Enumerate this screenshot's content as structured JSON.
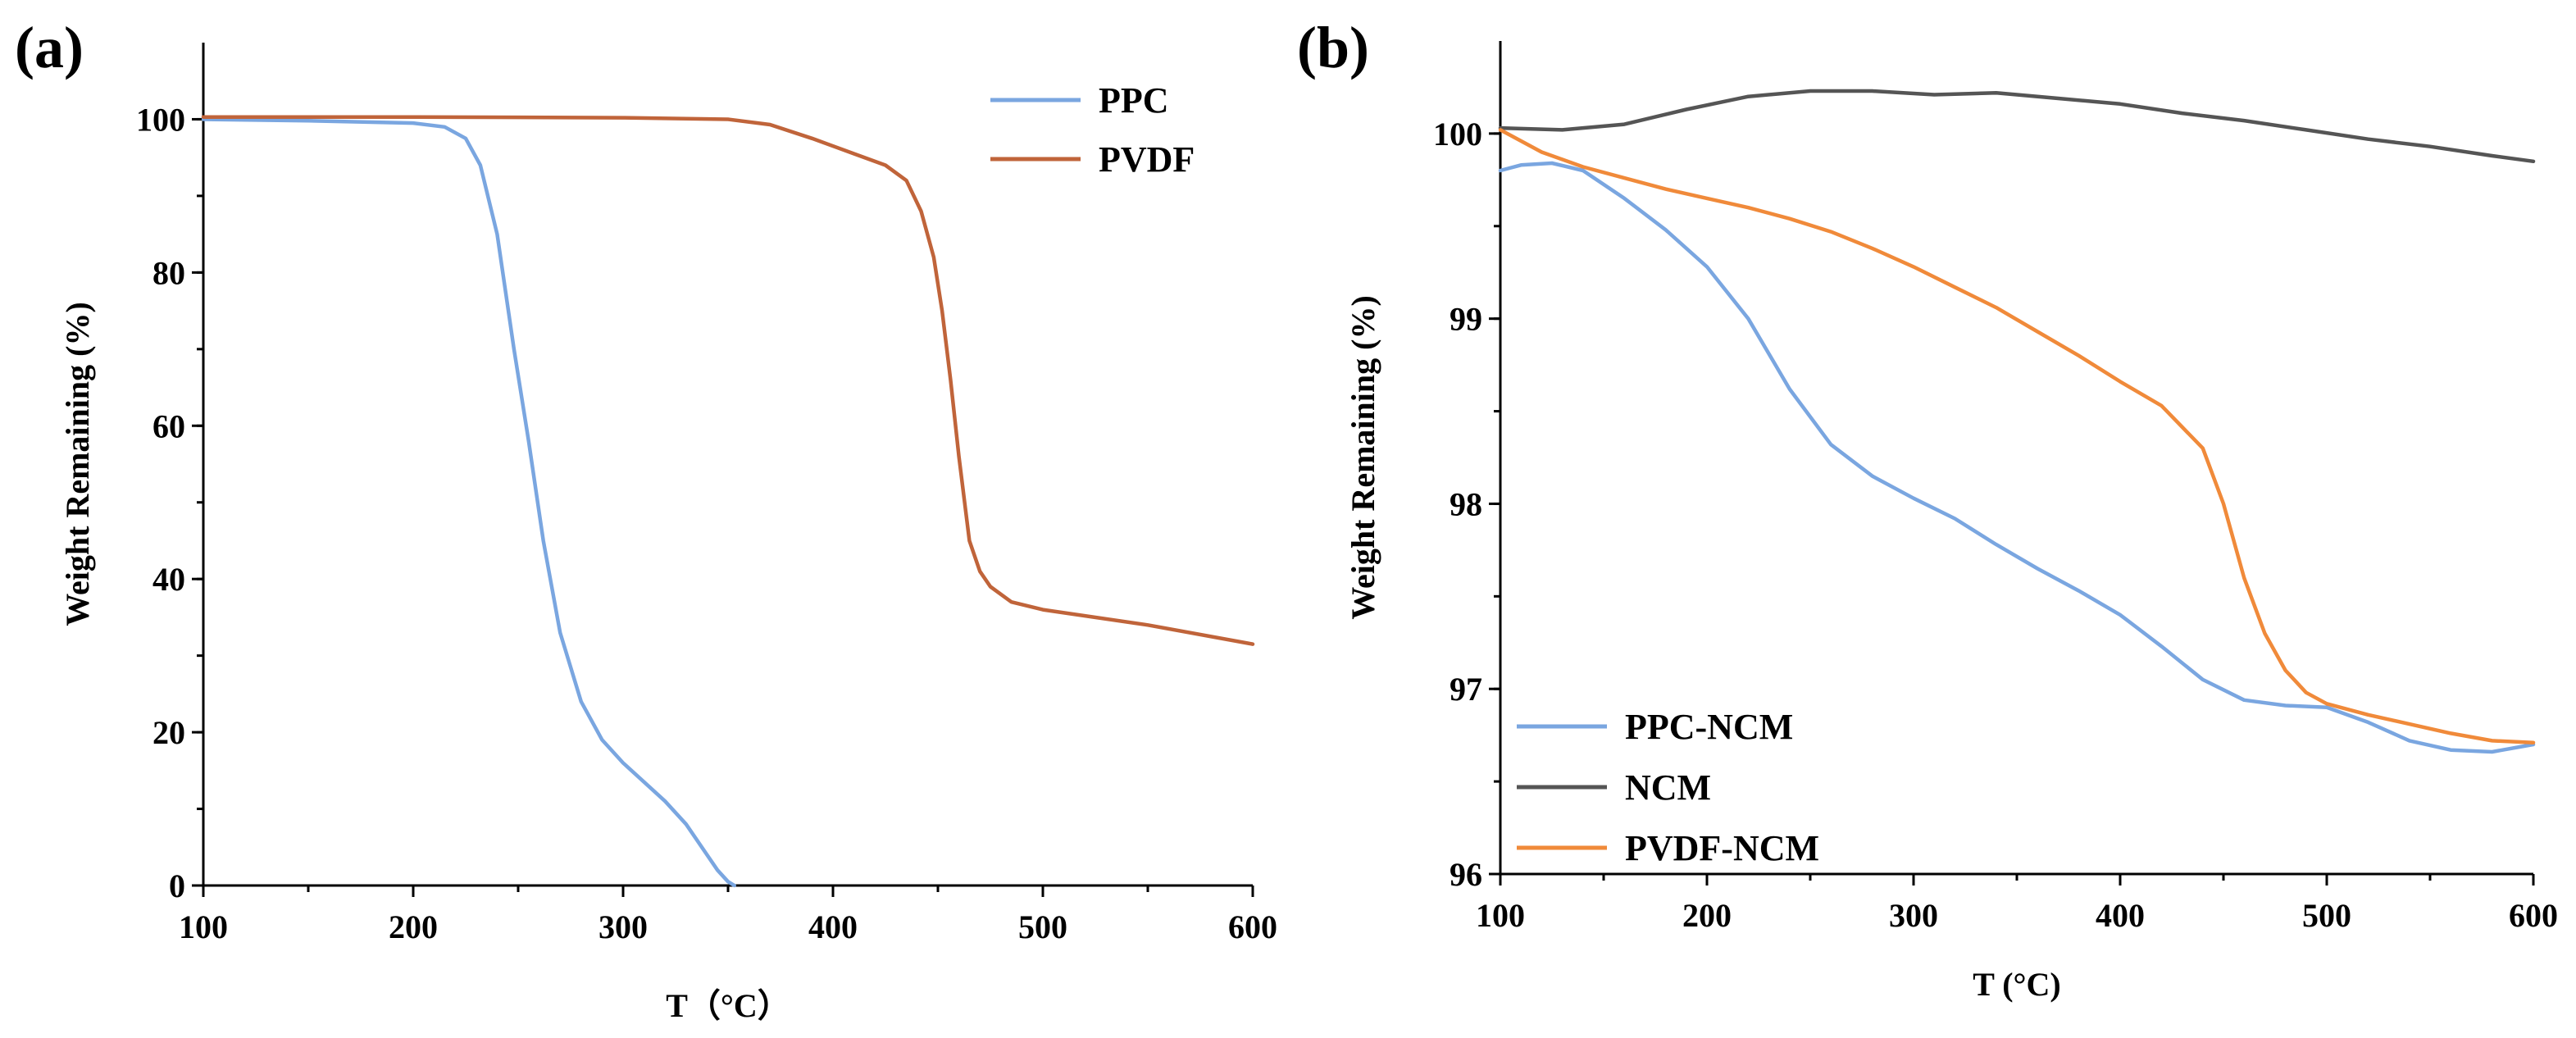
{
  "chart_data": [
    {
      "panel_label": "(a)",
      "type": "line",
      "xlabel": "T（°C）",
      "ylabel": "Weight Remaining (%)",
      "xlim": [
        100,
        600
      ],
      "ylim": [
        0,
        110
      ],
      "xticks": [
        "100",
        "200",
        "300",
        "400",
        "500",
        "600"
      ],
      "yticks": [
        "0",
        "20",
        "40",
        "60",
        "80",
        "100"
      ],
      "legend_position": "top-right",
      "series": [
        {
          "name": "PPC",
          "color": "#7aa6e0",
          "x": [
            100,
            150,
            200,
            215,
            225,
            232,
            240,
            248,
            255,
            262,
            270,
            280,
            290,
            300,
            310,
            320,
            330,
            340,
            345,
            350,
            353
          ],
          "y": [
            100,
            99.8,
            99.5,
            99,
            97.5,
            94,
            85,
            70,
            58,
            45,
            33,
            24,
            19,
            16,
            13.5,
            11,
            8,
            4,
            2,
            0.5,
            0
          ]
        },
        {
          "name": "PVDF",
          "color": "#c0643a",
          "x": [
            100,
            200,
            300,
            350,
            370,
            390,
            410,
            425,
            435,
            442,
            448,
            452,
            456,
            460,
            465,
            470,
            475,
            485,
            500,
            550,
            600
          ],
          "y": [
            100.3,
            100.3,
            100.2,
            100,
            99.3,
            97.5,
            95.5,
            94,
            92,
            88,
            82,
            75,
            66,
            56,
            45,
            41,
            39,
            37,
            36,
            34,
            31.5
          ]
        }
      ]
    },
    {
      "panel_label": "(b)",
      "type": "line",
      "xlabel": "T (°C)",
      "ylabel": "Weight Remaining (%)",
      "xlim": [
        100,
        600
      ],
      "ylim": [
        96,
        100.5
      ],
      "xticks": [
        "100",
        "200",
        "300",
        "400",
        "500",
        "600"
      ],
      "yticks": [
        "96",
        "97",
        "98",
        "99",
        "100"
      ],
      "legend_position": "bottom-left",
      "series": [
        {
          "name": "PPC-NCM",
          "color": "#7aa6e0",
          "x": [
            100,
            110,
            125,
            140,
            160,
            180,
            200,
            220,
            240,
            260,
            280,
            300,
            320,
            340,
            360,
            380,
            400,
            420,
            440,
            460,
            480,
            500,
            520,
            540,
            560,
            580,
            600
          ],
          "y": [
            99.8,
            99.83,
            99.84,
            99.8,
            99.65,
            99.48,
            99.28,
            99.0,
            98.62,
            98.32,
            98.15,
            98.03,
            97.92,
            97.78,
            97.65,
            97.53,
            97.4,
            97.23,
            97.05,
            96.94,
            96.91,
            96.9,
            96.82,
            96.72,
            96.67,
            96.66,
            96.7
          ]
        },
        {
          "name": "NCM",
          "color": "#555555",
          "x": [
            100,
            130,
            160,
            190,
            220,
            250,
            280,
            310,
            340,
            370,
            400,
            430,
            460,
            490,
            520,
            550,
            580,
            600
          ],
          "y": [
            100.03,
            100.02,
            100.05,
            100.13,
            100.2,
            100.23,
            100.23,
            100.21,
            100.22,
            100.19,
            100.16,
            100.11,
            100.07,
            100.02,
            99.97,
            99.93,
            99.88,
            99.85
          ]
        },
        {
          "name": "PVDF-NCM",
          "color": "#f08a3a",
          "x": [
            100,
            120,
            140,
            160,
            180,
            200,
            220,
            240,
            260,
            280,
            300,
            320,
            340,
            360,
            380,
            400,
            420,
            440,
            450,
            460,
            470,
            480,
            490,
            500,
            520,
            540,
            560,
            580,
            600
          ],
          "y": [
            100.02,
            99.9,
            99.82,
            99.76,
            99.7,
            99.65,
            99.6,
            99.54,
            99.47,
            99.38,
            99.28,
            99.17,
            99.06,
            98.93,
            98.8,
            98.66,
            98.53,
            98.3,
            98.0,
            97.6,
            97.3,
            97.1,
            96.98,
            96.92,
            96.86,
            96.81,
            96.76,
            96.72,
            96.71
          ]
        }
      ]
    }
  ]
}
